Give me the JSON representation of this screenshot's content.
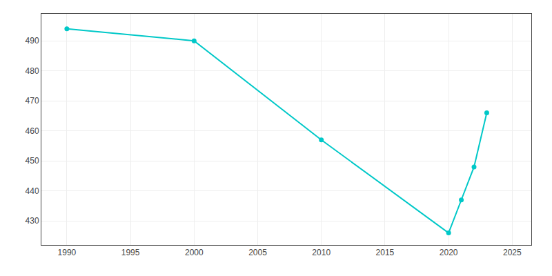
{
  "chart_data": {
    "type": "line",
    "x": [
      1990,
      2000,
      2010,
      2020,
      2021,
      2022,
      2023
    ],
    "values": [
      494,
      490,
      457,
      426,
      437,
      448,
      466
    ],
    "color": "#00C8C8",
    "marker": "circle",
    "xlim": [
      1988,
      2026.5
    ],
    "xticks": [
      1990,
      1995,
      2000,
      2005,
      2010,
      2015,
      2020,
      2025
    ],
    "ylim": [
      422,
      499
    ],
    "yticks": [
      430,
      440,
      450,
      460,
      470,
      480,
      490
    ],
    "grid": true
  }
}
